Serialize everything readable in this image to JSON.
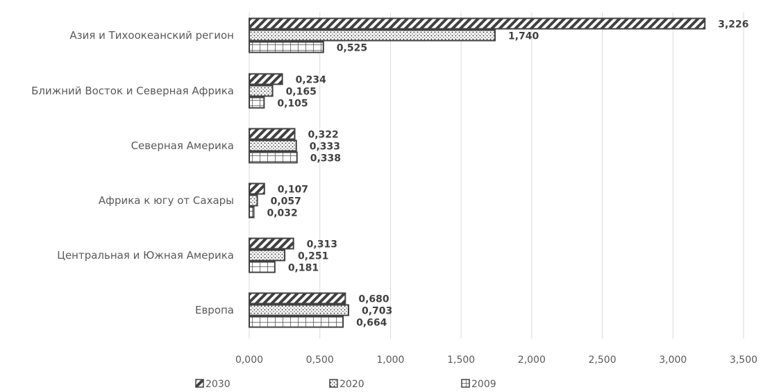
{
  "chart_data": {
    "type": "bar",
    "orientation": "horizontal",
    "categories": [
      "Азия и Тихоокеанский регион",
      "Ближний Восток и Северная Африка",
      "Северная Америка",
      "Африка к югу от Сахары",
      "Центральная и Южная Америка",
      "Европа"
    ],
    "series": [
      {
        "name": "2030",
        "values": [
          3.226,
          0.234,
          0.322,
          0.107,
          0.313,
          0.68
        ],
        "labels": [
          "3,226",
          "0,234",
          "0,322",
          "0,107",
          "0,313",
          "0,680"
        ],
        "pattern": "diagonal-hatch"
      },
      {
        "name": "2020",
        "values": [
          1.74,
          0.165,
          0.333,
          0.057,
          0.251,
          0.703
        ],
        "labels": [
          "1,740",
          "0,165",
          "0,333",
          "0,057",
          "0,251",
          "0,703"
        ],
        "pattern": "dots"
      },
      {
        "name": "2009",
        "values": [
          0.525,
          0.105,
          0.338,
          0.032,
          0.181,
          0.664
        ],
        "labels": [
          "0,525",
          "0,105",
          "0,338",
          "0,032",
          "0,181",
          "0,664"
        ],
        "pattern": "grid"
      }
    ],
    "xlim": [
      0,
      3.5
    ],
    "xticks": [
      "0,000",
      "0,500",
      "1,000",
      "1,500",
      "2,000",
      "2,500",
      "3,000",
      "3,500"
    ],
    "title": "",
    "xlabel": "",
    "ylabel": "",
    "grid": "vertical",
    "legend_position": "bottom",
    "colors": {
      "stroke": "#404040",
      "text": "#595959",
      "gridline": "#d9d9d9"
    }
  }
}
